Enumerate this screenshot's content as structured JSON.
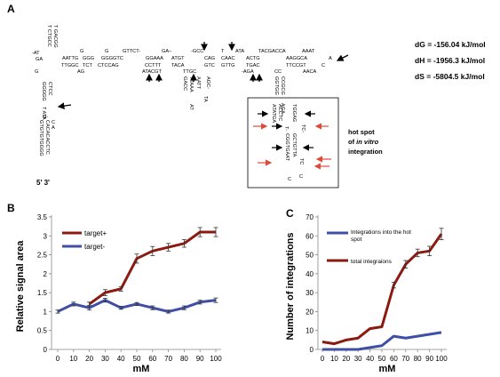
{
  "panelA": {
    "letter": "A",
    "energies": [
      {
        "label": "dG",
        "value": "= -156.04 kJ/mol"
      },
      {
        "label": "dH",
        "value": "= -1956.3 kJ/mol"
      },
      {
        "label": "dS",
        "value": "= -5804.5 kJ/mol"
      }
    ],
    "hotspot_line1": "hot spot",
    "hotspot_line2_pre": "of ",
    "hotspot_line2_em": "in vitro",
    "hotspot_line3": "integration",
    "ends_label": "5' 3'",
    "top_row_upper": [
      "-AT",
      "G",
      "G",
      "GTTCT-",
      "GA–",
      "-GCC",
      "T",
      "ATA",
      "TACGACCA",
      "AAAT"
    ],
    "top_row_middle": [
      "GA",
      "AATTG",
      "GGG",
      "GGGGTC",
      "GGAAA",
      "ATGT",
      "CAG",
      "CAAC",
      "ACTG",
      "AAGGCA",
      "A"
    ],
    "top_row_lower": [
      "TTGGC",
      "TCT",
      "CTCCAG",
      "CCTTT",
      "TACA",
      "GTC",
      "GTTG",
      "TGAC",
      "TTCCGT",
      "C"
    ],
    "top_row_bottom": [
      "G",
      "AG",
      "ATACGT",
      "TTGC",
      "-AGA",
      "CC",
      "AACA"
    ],
    "left_column": [
      "GGGGG",
      "CTCC",
      "TAT",
      "A",
      "G-",
      "C"
    ],
    "left_stem_a": "GTGTGTGGGG",
    "left_stem_b": "CACACACCTC",
    "stem_mid_a": "GACC",
    "stem_mid_b": "TTAAA",
    "stem_mid_c": "AATT",
    "stem_mid_d": "AT",
    "stem_mid_e": "TA",
    "stem_mid_f": "AGC-",
    "box_seq": [
      "ATATGA",
      "ACCTC",
      "TGGAG",
      "T-",
      "GGTGG",
      "CCGCG",
      "AGA-",
      "GCTGTTA",
      "CGGTGAAT",
      "TC",
      "C"
    ]
  },
  "panelB": {
    "letter": "B",
    "ylabel": "Relative signal area",
    "xlabel": "mM",
    "legend": [
      "target+",
      "target-"
    ]
  },
  "panelC": {
    "letter": "C",
    "ylabel": "Number of integrations",
    "xlabel": "mM",
    "legend": [
      "Integrations into the hot spot",
      "total integraions"
    ]
  },
  "chart_data": [
    {
      "type": "line",
      "ylabel": "Relative signal area",
      "xlabel": "mM",
      "x": [
        0,
        10,
        20,
        30,
        40,
        50,
        60,
        70,
        80,
        90,
        100
      ],
      "xticks": [
        "0",
        "10",
        "20",
        "30",
        "40",
        "50",
        "60",
        "70",
        "80",
        "90",
        "100"
      ],
      "yticks": [
        "0",
        "0.5",
        "1",
        "1.5",
        "2",
        "2.5",
        "3",
        "3.5"
      ],
      "ylim": [
        0,
        3.5
      ],
      "grid": false,
      "legend_position": "top-left",
      "series": [
        {
          "name": "target+",
          "color": "#8b1a10",
          "values": [
            null,
            null,
            1.2,
            1.5,
            1.6,
            2.4,
            2.6,
            2.7,
            2.8,
            3.1,
            3.1
          ],
          "errors": [
            0,
            0,
            0.05,
            0.08,
            0.06,
            0.12,
            0.12,
            0.1,
            0.1,
            0.12,
            0.12
          ]
        },
        {
          "name": "target-",
          "color": "#3f4fa6",
          "values": [
            1.0,
            1.2,
            1.1,
            1.3,
            1.1,
            1.2,
            1.1,
            1.0,
            1.1,
            1.25,
            1.3
          ],
          "errors": [
            0.04,
            0.05,
            0.06,
            0.05,
            0.04,
            0.04,
            0.05,
            0.04,
            0.05,
            0.05,
            0.06
          ]
        }
      ]
    },
    {
      "type": "line",
      "ylabel": "Number of integrations",
      "xlabel": "mM",
      "x": [
        0,
        10,
        20,
        30,
        40,
        50,
        60,
        70,
        80,
        90,
        100
      ],
      "xticks": [
        "0",
        "10",
        "20",
        "30",
        "40",
        "50",
        "60",
        "70",
        "80",
        "90",
        "100"
      ],
      "yticks": [
        "0",
        "10",
        "20",
        "30",
        "40",
        "50",
        "60",
        "70"
      ],
      "ylim": [
        0,
        70
      ],
      "grid": false,
      "legend_position": "top-left",
      "series": [
        {
          "name": "Integrations into the hot spot",
          "color": "#3f4fa6",
          "values": [
            0,
            0,
            0,
            0,
            1,
            2,
            7,
            6,
            7,
            8,
            9
          ],
          "errors": [
            0,
            0,
            0,
            0,
            0,
            0,
            0,
            0,
            0,
            0,
            0
          ]
        },
        {
          "name": "total integraions",
          "color": "#8b1a10",
          "values": [
            4,
            3,
            5,
            6,
            11,
            12,
            34,
            45,
            51,
            52,
            61
          ],
          "errors": [
            0,
            0,
            0,
            0,
            0,
            0,
            1.5,
            2,
            2,
            2.5,
            3
          ]
        }
      ]
    }
  ]
}
